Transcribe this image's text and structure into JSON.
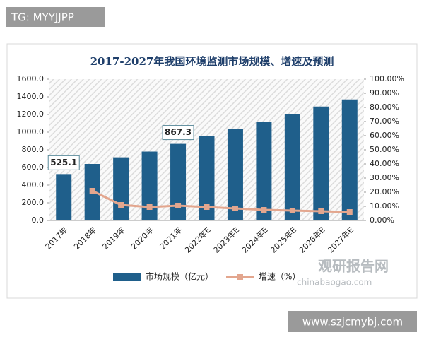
{
  "chart_data": {
    "type": "bar_line",
    "title": "2017-2027年我国环境监测市场规模、增速及预测",
    "categories": [
      "2017年",
      "2018年",
      "2019年",
      "2020年",
      "2021年",
      "2022年E",
      "2023年E",
      "2024年E",
      "2025年E",
      "2026年E",
      "2027年E"
    ],
    "series": [
      {
        "name": "市场规模（亿元）",
        "type": "bar",
        "color": "#1f5f8b",
        "values": [
          525.1,
          640,
          715,
          780,
          867.3,
          960,
          1040,
          1120,
          1205,
          1290,
          1370
        ]
      },
      {
        "name": "增速（%）",
        "type": "line",
        "axis": "y2",
        "color": "#e3a68e",
        "values": [
          null,
          21,
          11,
          9.5,
          10.5,
          9.5,
          8.5,
          7.5,
          7,
          6.5,
          6
        ]
      }
    ],
    "labeled_points": [
      0,
      4
    ],
    "ylim": [
      0,
      1600
    ],
    "yticks": [
      {
        "value": 0,
        "label": "0.0"
      },
      {
        "value": 200,
        "label": "200.0"
      },
      {
        "value": 400,
        "label": "400.0"
      },
      {
        "value": 600,
        "label": "600.0"
      },
      {
        "value": 800,
        "label": "800.0"
      },
      {
        "value": 1000,
        "label": "1000.0"
      },
      {
        "value": 1200,
        "label": "1200.0"
      },
      {
        "value": 1400,
        "label": "1400.0"
      },
      {
        "value": 1600,
        "label": "1600.0"
      }
    ],
    "y2lim": [
      0,
      100
    ],
    "y2ticks": [
      {
        "value": 0,
        "label": "0.00%"
      },
      {
        "value": 10,
        "label": "10.00%"
      },
      {
        "value": 20,
        "label": "20.00%"
      },
      {
        "value": 30,
        "label": "30.00%"
      },
      {
        "value": 40,
        "label": "40.00%"
      },
      {
        "value": 50,
        "label": "50.00%"
      },
      {
        "value": 60,
        "label": "60.00%"
      },
      {
        "value": 70,
        "label": "70.00%"
      },
      {
        "value": 80,
        "label": "80.00%"
      },
      {
        "value": 90,
        "label": "90.00%"
      },
      {
        "value": 100,
        "label": "100.00%"
      }
    ]
  },
  "overlays": {
    "tag": "TG: MYYJJPP",
    "site": "www.szjcmybj.com",
    "watermark": "观研报告网",
    "watermark_url": "chinabaogao.com"
  }
}
